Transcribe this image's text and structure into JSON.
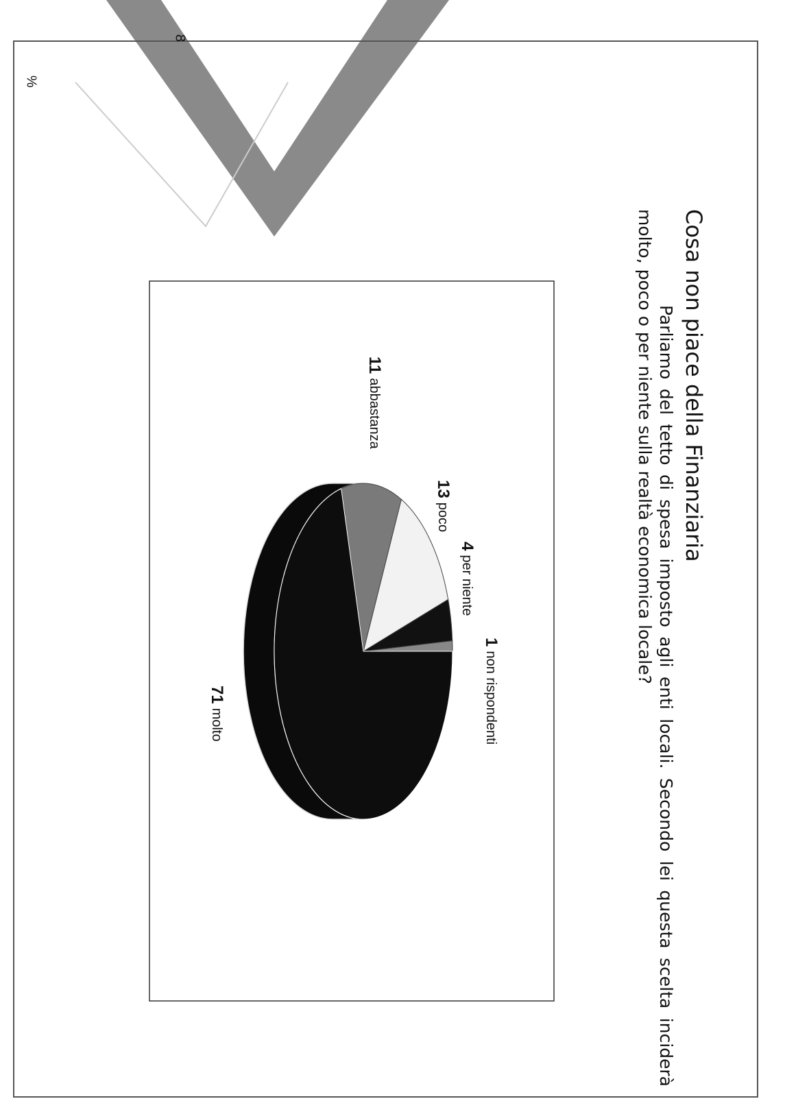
{
  "chart_data": {
    "type": "pie",
    "title": "Cosa non piace della Finanziaria",
    "question": "Parliamo del tetto di spesa imposto agli enti locali. Secondo lei questa scelta inciderà molto, poco o per niente sulla realtà economica locale?",
    "unit_label": "%",
    "page_number": "8",
    "categories": [
      "non rispondenti",
      "per niente",
      "poco",
      "abbastanza",
      "molto"
    ],
    "values": [
      1,
      4,
      13,
      11,
      71
    ],
    "colors": [
      "#888888",
      "#111111",
      "#f2f2f2",
      "#7a7a7a",
      "#0d0d0d"
    ]
  }
}
